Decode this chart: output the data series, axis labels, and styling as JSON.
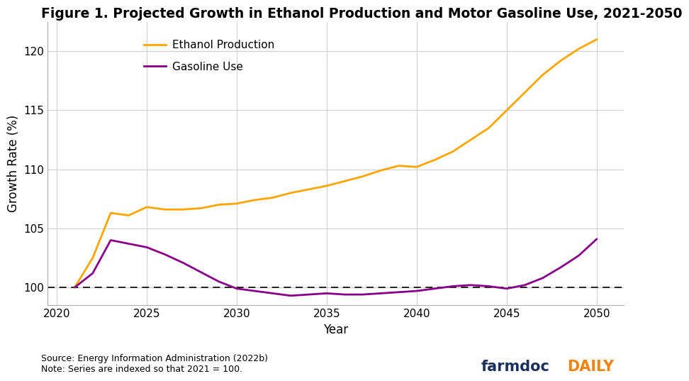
{
  "title": "Figure 1. Projected Growth in Ethanol Production and Motor Gasoline Use, 2021-2050",
  "xlabel": "Year",
  "ylabel": "Growth Rate (%)",
  "source_text": "Source: Energy Information Administration (2022b)\nNote: Series are indexed so that 2021 = 100.",
  "background_color": "#ffffff",
  "grid_color": "#d0d0d0",
  "ethanol_color": "#FFA500",
  "gasoline_color": "#8B008B",
  "dashed_line_color": "#000000",
  "xlim": [
    2019.5,
    2051.5
  ],
  "ylim": [
    98.5,
    122.5
  ],
  "xticks": [
    2020,
    2025,
    2030,
    2035,
    2040,
    2045,
    2050
  ],
  "yticks": [
    100,
    105,
    110,
    115,
    120
  ],
  "ethanol_years": [
    2021,
    2022,
    2023,
    2024,
    2025,
    2026,
    2027,
    2028,
    2029,
    2030,
    2031,
    2032,
    2033,
    2034,
    2035,
    2036,
    2037,
    2038,
    2039,
    2040,
    2041,
    2042,
    2043,
    2044,
    2045,
    2046,
    2047,
    2048,
    2049,
    2050
  ],
  "ethanol_values": [
    100,
    102.5,
    106.3,
    106.1,
    106.8,
    106.6,
    106.6,
    106.7,
    107.0,
    107.1,
    107.4,
    107.6,
    108.0,
    108.3,
    108.6,
    109.0,
    109.4,
    109.9,
    110.3,
    110.2,
    110.8,
    111.5,
    112.5,
    113.5,
    115.0,
    116.5,
    118.0,
    119.2,
    120.2,
    121.0
  ],
  "gasoline_years": [
    2021,
    2022,
    2023,
    2024,
    2025,
    2026,
    2027,
    2028,
    2029,
    2030,
    2031,
    2032,
    2033,
    2034,
    2035,
    2036,
    2037,
    2038,
    2039,
    2040,
    2041,
    2042,
    2043,
    2044,
    2045,
    2046,
    2047,
    2048,
    2049,
    2050
  ],
  "gasoline_values": [
    100,
    101.2,
    104.0,
    103.7,
    103.4,
    102.8,
    102.1,
    101.3,
    100.5,
    99.9,
    99.7,
    99.5,
    99.3,
    99.4,
    99.5,
    99.4,
    99.4,
    99.5,
    99.6,
    99.7,
    99.9,
    100.1,
    100.2,
    100.1,
    99.9,
    100.2,
    100.8,
    101.7,
    102.7,
    104.1
  ],
  "legend_labels": [
    "Ethanol Production",
    "Gasoline Use"
  ],
  "legend_colors": [
    "#FFA500",
    "#8B008B"
  ],
  "title_fontsize": 13.5,
  "axis_label_fontsize": 12,
  "tick_fontsize": 11,
  "legend_fontsize": 11,
  "source_fontsize": 9,
  "farmdoc_color": "#1a2f5e",
  "daily_color": "#f5820a",
  "watermark_fontsize": 15
}
